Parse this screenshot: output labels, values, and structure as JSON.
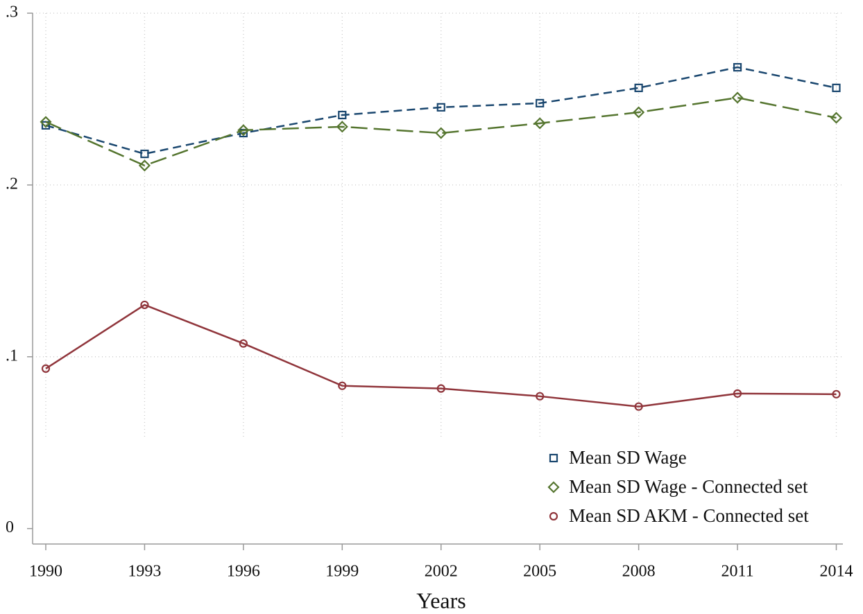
{
  "chart_data": {
    "type": "line",
    "x_label": "Years",
    "x": [
      1990,
      1993,
      1996,
      1999,
      2002,
      2005,
      2008,
      2011,
      2014
    ],
    "series": [
      {
        "name": "Mean SD Wage",
        "color": "#1a476f",
        "marker": "square",
        "linestyle": "dashed",
        "values": [
          0.2347,
          0.2181,
          0.2302,
          0.2407,
          0.2452,
          0.2476,
          0.2565,
          0.2685,
          0.2565
        ]
      },
      {
        "name": "Mean SD Wage - Connected set",
        "color": "#55752f",
        "marker": "diamond",
        "linestyle": "longdash",
        "values": [
          0.2367,
          0.2113,
          0.2319,
          0.2339,
          0.2302,
          0.2359,
          0.2423,
          0.2508,
          0.2391
        ]
      },
      {
        "name": "Mean SD AKM - Connected set",
        "color": "#90353b",
        "marker": "circle",
        "linestyle": "solid",
        "values": [
          0.0931,
          0.1302,
          0.1077,
          0.0831,
          0.0815,
          0.077,
          0.071,
          0.0786,
          0.0782
        ]
      }
    ],
    "xlim": [
      1989.6,
      2014.2
    ],
    "xticks": [
      1990,
      1993,
      1996,
      1999,
      2002,
      2005,
      2008,
      2011,
      2014
    ],
    "ylim": [
      -0.009,
      0.3
    ],
    "yticks": [
      0,
      {
        "value": 0.1,
        "label": ".1"
      },
      {
        "value": 0.2,
        "label": ".2"
      },
      {
        "value": 0.3,
        "label": ".3"
      }
    ],
    "grid": true,
    "legend": "lower right"
  }
}
